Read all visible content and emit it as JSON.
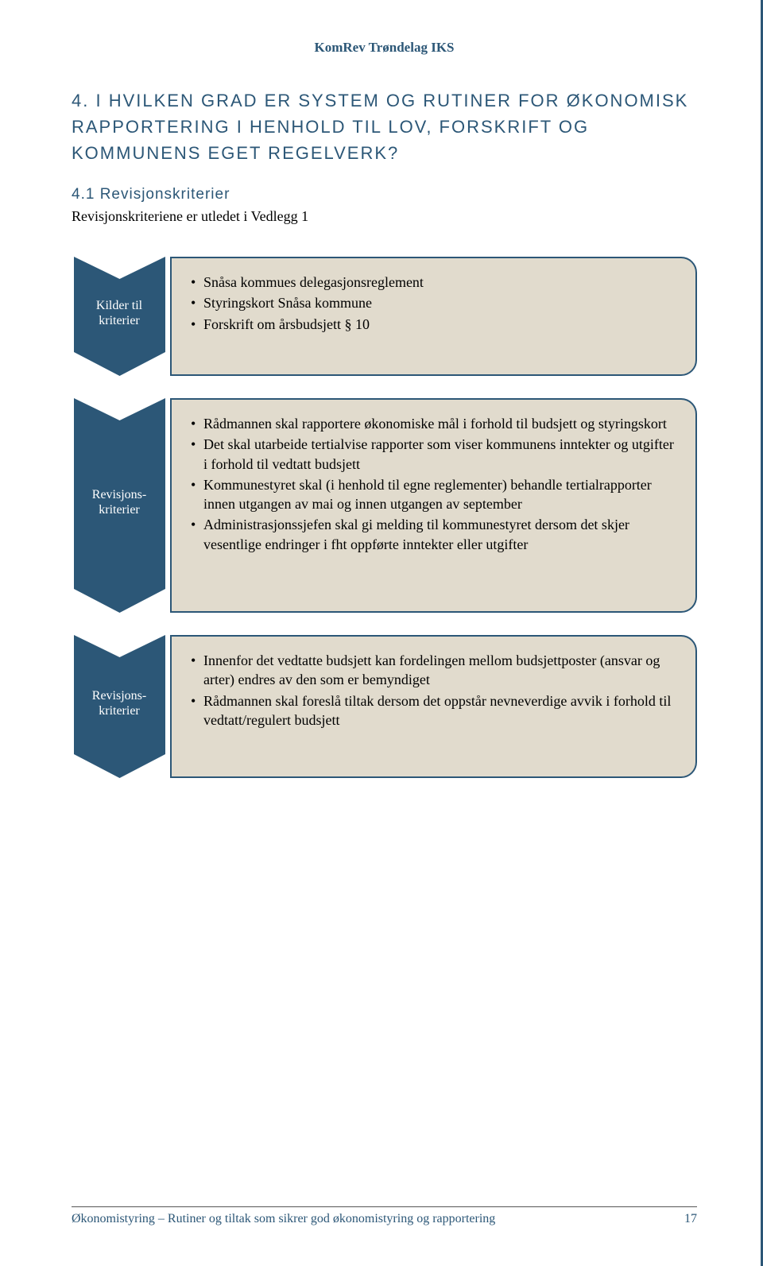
{
  "header": "KomRev Trøndelag IKS",
  "section_number": "4.",
  "section_title": "I HVILKEN GRAD ER SYSTEM OG RUTINER FOR ØKONOMISK RAPPORTERING I HENHOLD TIL LOV, FORSKRIFT OG KOMMUNENS EGET REGELVERK?",
  "subsection": "4.1  Revisjonskriterier",
  "subtext": "Revisjonskriteriene er utledet i Vedlegg 1",
  "blocks": [
    {
      "label": "Kilder til kriterier",
      "chevron_color": "#2c5777",
      "box_bg": "#e1dbcd",
      "box_border": "#2c5777",
      "items": [
        "Snåsa kommues delegasjonsreglement",
        "Styringskort Snåsa kommune",
        "Forskrift om årsbudsjett § 10"
      ]
    },
    {
      "label": "Revisjons-kriterier",
      "chevron_color": "#2c5777",
      "box_bg": "#e1dbcd",
      "box_border": "#2c5777",
      "items": [
        "Rådmannen skal rapportere økonomiske mål i forhold til budsjett og styringskort",
        "Det skal utarbeide tertialvise rapporter som viser kommunens inntekter og utgifter i forhold til vedtatt budsjett",
        "Kommunestyret skal (i henhold til egne reglementer) behandle tertialrapporter innen utgangen av mai og innen utgangen av september",
        "Administrasjonssjefen skal gi melding til kommunestyret dersom det skjer vesentlige endringer i fht oppførte inntekter eller utgifter"
      ]
    },
    {
      "label": "Revisjons-kriterier",
      "chevron_color": "#2c5777",
      "box_bg": "#e1dbcd",
      "box_border": "#2c5777",
      "items": [
        "Innenfor det vedtatte budsjett kan fordelingen mellom budsjettposter (ansvar og arter) endres av den som er bemyndiget",
        "Rådmannen skal foreslå tiltak dersom det oppstår nevneverdige avvik i forhold til vedtatt/regulert budsjett"
      ]
    }
  ],
  "footer_text": "Økonomistyring – Rutiner og tiltak som sikrer god økonomistyring og rapportering",
  "page_number": "17",
  "colors": {
    "primary": "#2c5777",
    "box_bg": "#e1dbcd",
    "text": "#000000",
    "page_bg": "#ffffff"
  }
}
